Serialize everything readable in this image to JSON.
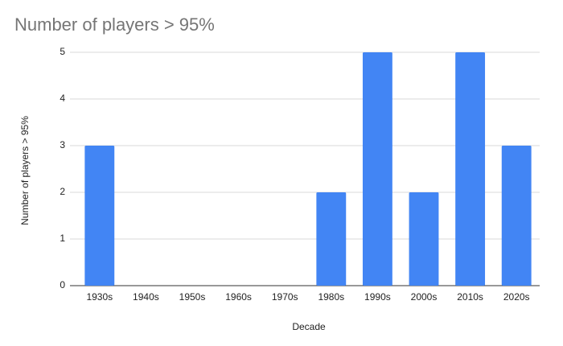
{
  "chart_data": {
    "type": "bar",
    "title": "Number of players > 95%",
    "x_label": "Decade",
    "y_label": "Number of players > 95%",
    "categories": [
      "1930s",
      "1940s",
      "1950s",
      "1960s",
      "1970s",
      "1980s",
      "1990s",
      "2000s",
      "2010s",
      "2020s"
    ],
    "values": [
      3,
      0,
      0,
      0,
      0,
      2,
      5,
      2,
      5,
      3
    ],
    "color": "#4285f4",
    "ylim": [
      0,
      5
    ],
    "yticks": [
      0,
      1,
      2,
      3,
      4,
      5
    ],
    "grid": true
  }
}
